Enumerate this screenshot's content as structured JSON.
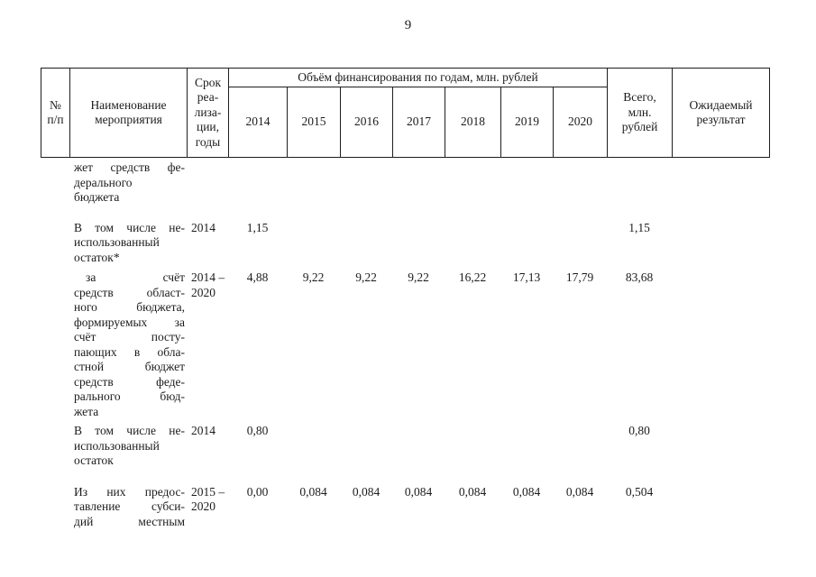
{
  "page_number": "9",
  "ink_color": "#1c1c1c",
  "table": {
    "header": {
      "num": "№ п/п",
      "name": "Наименование мероприятия",
      "term_lines": [
        "Срок",
        "реа-",
        "лиза-",
        "ции,",
        "годы"
      ],
      "finance_group": "Объём финансирования по годам, млн. рублей",
      "years": [
        "2014",
        "2015",
        "2016",
        "2017",
        "2018",
        "2019",
        "2020"
      ],
      "total_lines": [
        "Всего,",
        "млн.",
        "рублей"
      ],
      "result": "Ожидаемый результат"
    },
    "rows": [
      {
        "name_lines": [
          "жет средств фе-",
          "дерального",
          "бюджета"
        ],
        "term_lines": [],
        "values": [
          "",
          "",
          "",
          "",
          "",
          "",
          "",
          ""
        ]
      },
      {
        "name_lines": [
          "В том числе не-",
          "использованный",
          "остаток*"
        ],
        "term_lines": [
          "2014"
        ],
        "values": [
          "1,15",
          "",
          "",
          "",
          "",
          "",
          "",
          "1,15"
        ]
      },
      {
        "name_lines": [
          "за счёт",
          "средств област-",
          "ного бюджета,",
          "формируемых за",
          "счёт посту-",
          "пающих в обла-",
          "стной бюджет",
          "средств феде-",
          "рального бюд-",
          "жета"
        ],
        "term_lines": [
          "2014 –",
          "2020"
        ],
        "values": [
          "4,88",
          "9,22",
          "9,22",
          "9,22",
          "16,22",
          "17,13",
          "17,79",
          "83,68"
        ]
      },
      {
        "name_lines": [
          "В том числе не-",
          "использованный",
          "остаток"
        ],
        "term_lines": [
          "2014"
        ],
        "values": [
          "0,80",
          "",
          "",
          "",
          "",
          "",
          "",
          "0,80"
        ]
      },
      {
        "name_lines": [
          "Из них предос-",
          "тавление субси-",
          "дий местным"
        ],
        "term_lines": [
          "2015 –",
          "2020"
        ],
        "values": [
          "0,00",
          "0,084",
          "0,084",
          "0,084",
          "0,084",
          "0,084",
          "0,084",
          "0,504"
        ]
      }
    ]
  }
}
